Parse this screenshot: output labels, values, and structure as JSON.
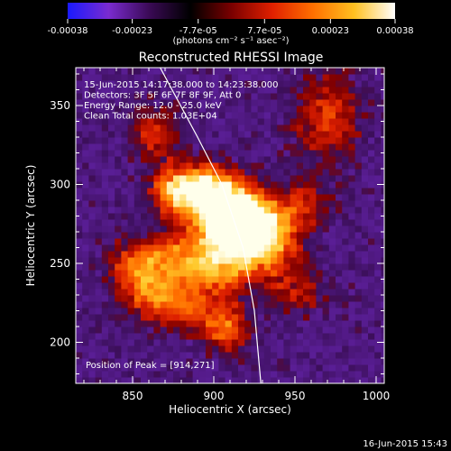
{
  "colorbar": {
    "ticks": [
      {
        "value": -0.00038,
        "label": "-0.00038"
      },
      {
        "value": -0.00023,
        "label": "-0.00023"
      },
      {
        "value": -7.7e-05,
        "label": "-7.7e-05"
      },
      {
        "value": 7.7e-05,
        "label": "7.7e-05"
      },
      {
        "value": 0.00023,
        "label": "0.00023"
      },
      {
        "value": 0.00038,
        "label": "0.00038"
      }
    ],
    "range": [
      -0.00038,
      0.00038
    ],
    "units_label": "(photons cm⁻² s⁻¹ asec⁻²)",
    "colors": [
      "#1a1aff",
      "#7a2bd0",
      "#3a0a55",
      "#000000",
      "#7a0000",
      "#e02000",
      "#ff7000",
      "#ffc020",
      "#ffffff"
    ]
  },
  "chart_data": {
    "type": "heatmap",
    "title": "Reconstructed RHESSI Image",
    "xlabel": "Heliocentric X (arcsec)",
    "ylabel": "Heliocentric Y (arcsec)",
    "xlim": [
      815,
      1005
    ],
    "ylim": [
      174,
      374
    ],
    "x_ticks": [
      850,
      900,
      950,
      1000
    ],
    "y_ticks": [
      200,
      250,
      300,
      350
    ],
    "annotations": [
      "15-Jun-2015 14:17:38.000 to 14:23:38.000",
      "Detectors: 3F 5F 6F 7F 8F 9F, Att 0",
      "Energy Range: 12.0 - 25.0 keV",
      "Clean     Total counts: 1.03E+04"
    ],
    "peak_label": "Position of Peak = [914,271]",
    "peak": [
      914,
      271
    ],
    "limb_curve": [
      [
        867,
        374
      ],
      [
        890,
        330
      ],
      [
        905,
        300
      ],
      [
        918,
        260
      ],
      [
        925,
        220
      ],
      [
        929,
        174
      ]
    ],
    "emission_blobs": [
      {
        "x": 914,
        "y": 271,
        "sx": 14,
        "sy": 14,
        "amp": 1.0
      },
      {
        "x": 902,
        "y": 283,
        "sx": 16,
        "sy": 12,
        "amp": 0.6
      },
      {
        "x": 890,
        "y": 298,
        "sx": 14,
        "sy": 10,
        "amp": 0.55
      },
      {
        "x": 873,
        "y": 293,
        "sx": 10,
        "sy": 10,
        "amp": 0.4
      },
      {
        "x": 935,
        "y": 263,
        "sx": 12,
        "sy": 16,
        "amp": 0.45
      },
      {
        "x": 900,
        "y": 245,
        "sx": 16,
        "sy": 12,
        "amp": 0.45
      },
      {
        "x": 875,
        "y": 250,
        "sx": 14,
        "sy": 12,
        "amp": 0.4
      },
      {
        "x": 850,
        "y": 248,
        "sx": 12,
        "sy": 10,
        "amp": 0.4
      },
      {
        "x": 857,
        "y": 228,
        "sx": 12,
        "sy": 10,
        "amp": 0.35
      },
      {
        "x": 905,
        "y": 207,
        "sx": 10,
        "sy": 10,
        "amp": 0.45
      },
      {
        "x": 880,
        "y": 220,
        "sx": 14,
        "sy": 10,
        "amp": 0.35
      },
      {
        "x": 955,
        "y": 285,
        "sx": 10,
        "sy": 10,
        "amp": 0.3
      },
      {
        "x": 968,
        "y": 340,
        "sx": 14,
        "sy": 20,
        "amp": 0.35
      },
      {
        "x": 862,
        "y": 330,
        "sx": 10,
        "sy": 12,
        "amp": 0.35
      },
      {
        "x": 950,
        "y": 230,
        "sx": 12,
        "sy": 10,
        "amp": 0.25
      }
    ],
    "grid": false
  },
  "footer": {
    "timestamp": "16-Jun-2015 15:43"
  }
}
